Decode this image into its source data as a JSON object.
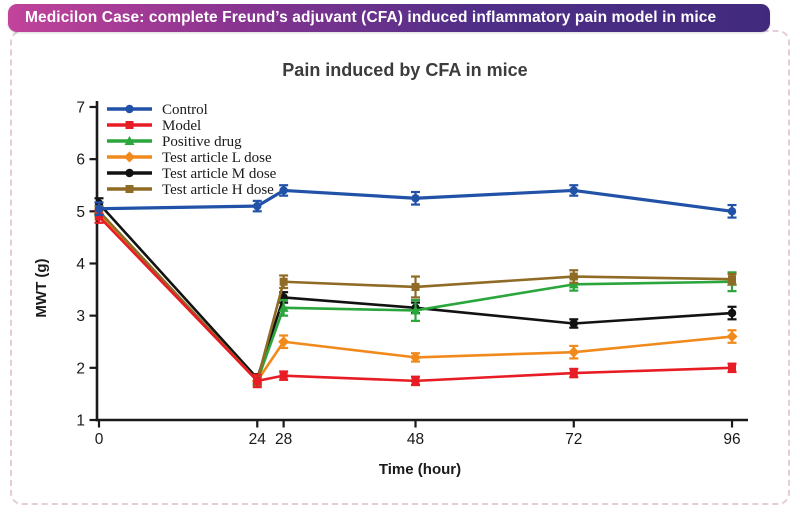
{
  "banner": {
    "text": "Medicilon Case: complete Freund’s adjuvant (CFA) induced inflammatory pain model in mice",
    "bg_left": "#c2439a",
    "bg_right": "#412a7e",
    "text_color": "#ffffff"
  },
  "chart_data": {
    "type": "line",
    "title": "Pain induced by CFA in mice",
    "xlabel": "Time (hour)",
    "ylabel": "MWT (g)",
    "x": [
      0,
      24,
      28,
      48,
      72,
      96
    ],
    "xtick_labels": [
      "0",
      "24",
      "28",
      "48",
      "72",
      "96"
    ],
    "ylim": [
      1,
      7
    ],
    "yticks": [
      1,
      2,
      3,
      4,
      5,
      6,
      7
    ],
    "grid": false,
    "error_bars": true,
    "legend_position": "top-left",
    "axis_color": "#1a1a1a",
    "series": [
      {
        "name": "Control",
        "color": "#2152a8",
        "marker": "circle",
        "values": [
          5.05,
          5.1,
          5.4,
          5.25,
          5.4,
          5.0
        ],
        "errors": [
          0.12,
          0.1,
          0.1,
          0.12,
          0.1,
          0.12
        ]
      },
      {
        "name": "Model",
        "color": "#e81c24",
        "marker": "square",
        "values": [
          4.9,
          1.75,
          1.85,
          1.75,
          1.9,
          2.0
        ],
        "errors": [
          0.12,
          0.12,
          0.08,
          0.08,
          0.08,
          0.08
        ]
      },
      {
        "name": "Positive drug",
        "color": "#2aa63c",
        "marker": "triangle",
        "values": [
          5.0,
          1.75,
          3.15,
          3.1,
          3.6,
          3.65
        ],
        "errors": [
          0.1,
          0.08,
          0.15,
          0.2,
          0.12,
          0.18
        ]
      },
      {
        "name": "Test article L dose",
        "color": "#f18a1d",
        "marker": "diamond",
        "values": [
          4.95,
          1.75,
          2.5,
          2.2,
          2.3,
          2.6
        ],
        "errors": [
          0.1,
          0.08,
          0.12,
          0.08,
          0.12,
          0.12
        ]
      },
      {
        "name": "Test article M dose",
        "color": "#121212",
        "marker": "circle",
        "values": [
          5.15,
          1.8,
          3.35,
          3.15,
          2.85,
          3.05
        ],
        "errors": [
          0.1,
          0.08,
          0.1,
          0.1,
          0.08,
          0.12
        ]
      },
      {
        "name": "Test article H dose",
        "color": "#8f6b26",
        "marker": "square",
        "values": [
          5.0,
          1.75,
          3.65,
          3.55,
          3.75,
          3.7
        ],
        "errors": [
          0.1,
          0.08,
          0.12,
          0.2,
          0.12,
          0.1
        ]
      }
    ]
  }
}
